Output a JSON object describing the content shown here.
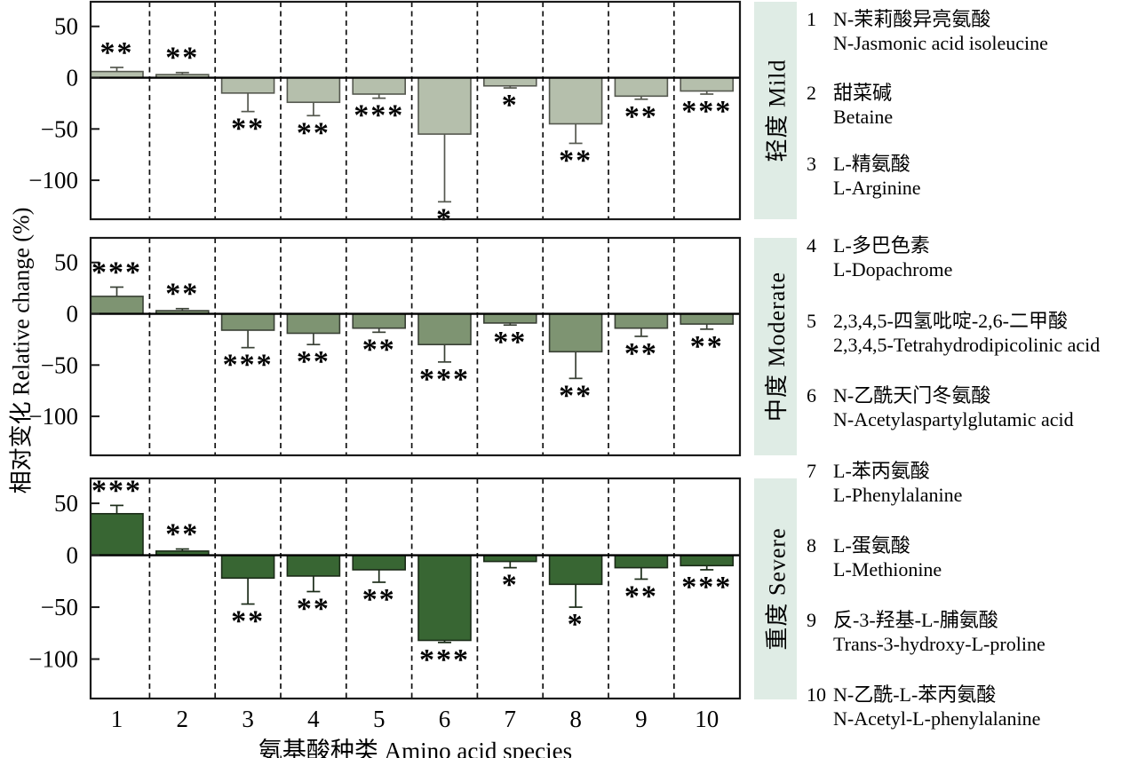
{
  "chart_data": {
    "type": "bar",
    "categories": [
      "1",
      "2",
      "3",
      "4",
      "5",
      "6",
      "7",
      "8",
      "9",
      "10"
    ],
    "xlabel": "氨基酸种类 Amino acid species",
    "ylabel": "相对变化 Relative change (%)",
    "ylim": [
      -138,
      74
    ],
    "yticks": [
      50,
      0,
      -50,
      -100
    ],
    "grid": "vertical dashed separators between categories",
    "legend_position": "right",
    "panels": [
      {
        "label": "轻度 Mild",
        "bar_color": "#b5bfac",
        "bar_stroke": "#55584f",
        "values": [
          6,
          3,
          -15,
          -24,
          -16,
          -55,
          -8,
          -45,
          -18,
          -13
        ],
        "errors": [
          4,
          2,
          18,
          13,
          4,
          66,
          2,
          19,
          3,
          3
        ],
        "sig": [
          "**",
          "**",
          "**",
          "**",
          "***",
          "*",
          "*",
          "**",
          "**",
          "***"
        ]
      },
      {
        "label": "中度 Moderate",
        "bar_color": "#7e9472",
        "bar_stroke": "#3a4136",
        "values": [
          17,
          3,
          -16,
          -19,
          -14,
          -30,
          -9,
          -37,
          -14,
          -10
        ],
        "errors": [
          9,
          2,
          17,
          11,
          4,
          17,
          2,
          26,
          8,
          5
        ],
        "sig": [
          "***",
          "**",
          "***",
          "**",
          "**",
          "***",
          "**",
          "**",
          "**",
          "**"
        ]
      },
      {
        "label": "重度 Severe",
        "bar_color": "#386633",
        "bar_stroke": "#1b2b18",
        "values": [
          40,
          4,
          -22,
          -20,
          -14,
          -82,
          -6,
          -28,
          -12,
          -10
        ],
        "errors": [
          8,
          2,
          25,
          15,
          12,
          2,
          6,
          22,
          11,
          4
        ],
        "sig": [
          "***",
          "**",
          "**",
          "**",
          "**",
          "***",
          "*",
          "*",
          "**",
          "***"
        ]
      }
    ]
  },
  "colors": {
    "strip_bg": "#dfece5",
    "axis": "#1a1a1a"
  },
  "legend": {
    "items": [
      {
        "num": "1",
        "cn": "N-茉莉酸异亮氨酸",
        "en": "N-Jasmonic acid isoleucine"
      },
      {
        "num": "2",
        "cn": "甜菜碱",
        "en": "Betaine"
      },
      {
        "num": "3",
        "cn": "L-精氨酸",
        "en": "L-Arginine"
      },
      {
        "num": "4",
        "cn": "L-多巴色素",
        "en": "L-Dopachrome"
      },
      {
        "num": "5",
        "cn": "2,3,4,5-四氢吡啶-2,6-二甲酸",
        "en": "2,3,4,5-Tetrahydrodipicolinic acid"
      },
      {
        "num": "6",
        "cn": "N-乙酰天门冬氨酸",
        "en": "N-Acetylaspartylglutamic acid"
      },
      {
        "num": "7",
        "cn": "L-苯丙氨酸",
        "en": "L-Phenylalanine"
      },
      {
        "num": "8",
        "cn": "L-蛋氨酸",
        "en": "L-Methionine"
      },
      {
        "num": "9",
        "cn": "反-3-羟基-L-脯氨酸",
        "en": "Trans-3-hydroxy-L-proline"
      },
      {
        "num": "10",
        "cn": "N-乙酰-L-苯丙氨酸",
        "en": "N-Acetyl-L-phenylalanine"
      }
    ]
  }
}
